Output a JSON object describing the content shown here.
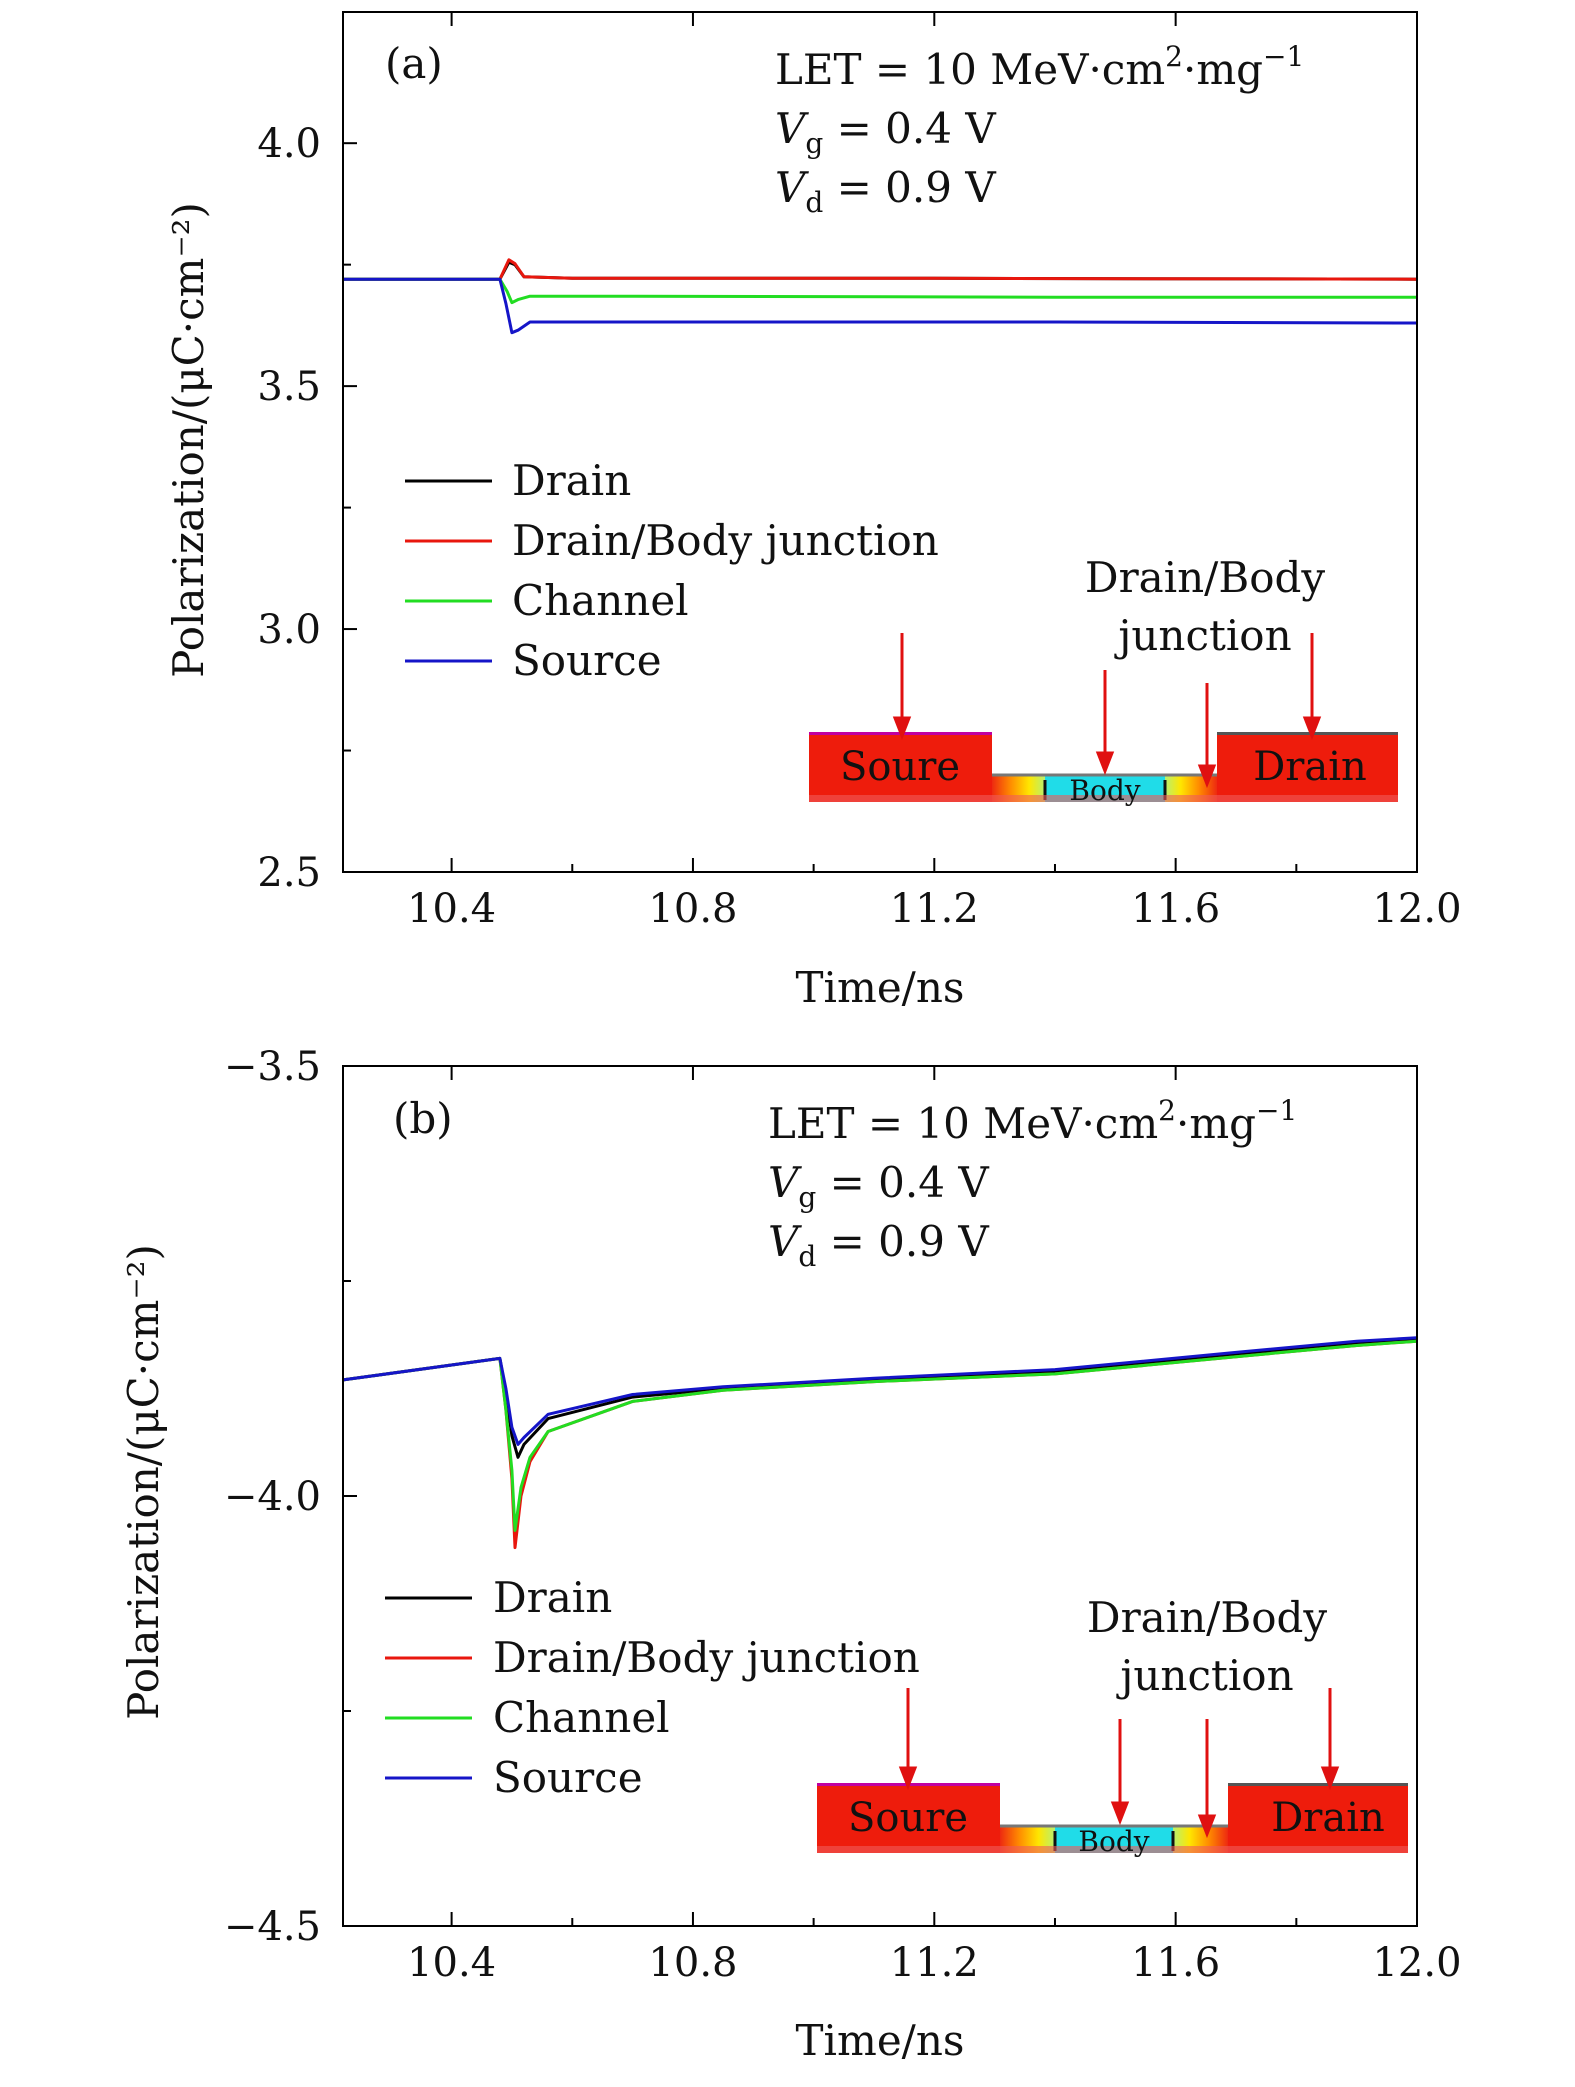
{
  "chart_data": [
    {
      "type": "line",
      "panel_label": "(a)",
      "xlabel": "Time/ns",
      "ylabel": "Polarization/(μC·cm⁻²)",
      "xlim": [
        10.22,
        12.0
      ],
      "ylim": [
        2.5,
        4.27
      ],
      "x_ticks": [
        10.4,
        10.8,
        11.2,
        11.6,
        12.0
      ],
      "x_tick_labels": [
        "10.4",
        "10.8",
        "11.2",
        "11.6",
        "12.0"
      ],
      "y_ticks": [
        2.5,
        3.0,
        3.5,
        4.0
      ],
      "y_tick_labels": [
        "2.5",
        "3.0",
        "3.5",
        "4.0"
      ],
      "annotation": {
        "let_prefix": "LET = 10 MeV·cm",
        "let_exp1": "2",
        "let_mid": "·mg",
        "let_exp2": "−1",
        "vg_sym": "V",
        "vg_sub": "g",
        "vg_val": " = 0.4 V",
        "vd_sym": "V",
        "vd_sub": "d",
        "vd_val": " = 0.9 V"
      },
      "legend": {
        "position": "left",
        "entries": [
          "Drain",
          "Drain/Body junction",
          "Channel",
          "Source"
        ]
      },
      "inset": {
        "source_label": "Soure",
        "drain_label": "Drain",
        "body_label": "Body",
        "junction_label_1": "Drain/Body",
        "junction_label_2": "junction"
      },
      "series": [
        {
          "name": "Drain",
          "color": "#000000",
          "points": [
            [
              10.22,
              3.72
            ],
            [
              10.48,
              3.72
            ],
            [
              10.495,
              3.755
            ],
            [
              10.505,
              3.75
            ],
            [
              10.52,
              3.725
            ],
            [
              10.6,
              3.722
            ],
            [
              11.2,
              3.722
            ],
            [
              12.0,
              3.72
            ]
          ]
        },
        {
          "name": "Drain/Body junction",
          "color": "#e8170e",
          "points": [
            [
              10.22,
              3.72
            ],
            [
              10.48,
              3.72
            ],
            [
              10.495,
              3.76
            ],
            [
              10.505,
              3.752
            ],
            [
              10.52,
              3.725
            ],
            [
              10.6,
              3.722
            ],
            [
              11.2,
              3.722
            ],
            [
              12.0,
              3.72
            ]
          ]
        },
        {
          "name": "Channel",
          "color": "#22dd22",
          "points": [
            [
              10.22,
              3.72
            ],
            [
              10.48,
              3.72
            ],
            [
              10.492,
              3.695
            ],
            [
              10.5,
              3.672
            ],
            [
              10.51,
              3.678
            ],
            [
              10.53,
              3.685
            ],
            [
              10.7,
              3.685
            ],
            [
              11.4,
              3.683
            ],
            [
              12.0,
              3.683
            ]
          ]
        },
        {
          "name": "Source",
          "color": "#1515c8",
          "points": [
            [
              10.22,
              3.72
            ],
            [
              10.48,
              3.72
            ],
            [
              10.49,
              3.67
            ],
            [
              10.5,
              3.61
            ],
            [
              10.51,
              3.615
            ],
            [
              10.53,
              3.632
            ],
            [
              10.7,
              3.632
            ],
            [
              11.4,
              3.632
            ],
            [
              12.0,
              3.63
            ]
          ]
        }
      ]
    },
    {
      "type": "line",
      "panel_label": "(b)",
      "xlabel": "Time/ns",
      "ylabel": "Polarization/(μC·cm⁻²)",
      "xlim": [
        10.22,
        12.0
      ],
      "ylim": [
        -4.5,
        -3.5
      ],
      "x_ticks": [
        10.4,
        10.8,
        11.2,
        11.6,
        12.0
      ],
      "x_tick_labels": [
        "10.4",
        "10.8",
        "11.2",
        "11.6",
        "12.0"
      ],
      "y_ticks": [
        -4.5,
        -4.0,
        -3.5
      ],
      "y_tick_labels": [
        "−4.5",
        "−4.0",
        "−3.5"
      ],
      "annotation": {
        "let_prefix": "LET = 10 MeV·cm",
        "let_exp1": "2",
        "let_mid": "·mg",
        "let_exp2": "−1",
        "vg_sym": "V",
        "vg_sub": "g",
        "vg_val": " = 0.4 V",
        "vd_sym": "V",
        "vd_sub": "d",
        "vd_val": " = 0.9 V"
      },
      "legend": {
        "position": "left",
        "entries": [
          "Drain",
          "Drain/Body junction",
          "Channel",
          "Source"
        ]
      },
      "inset": {
        "source_label": "Soure",
        "drain_label": "Drain",
        "body_label": "Body",
        "junction_label_1": "Drain/Body",
        "junction_label_2": "junction"
      },
      "series": [
        {
          "name": "Drain",
          "color": "#000000",
          "points": [
            [
              10.22,
              -3.865
            ],
            [
              10.48,
              -3.84
            ],
            [
              10.49,
              -3.88
            ],
            [
              10.5,
              -3.93
            ],
            [
              10.51,
              -3.955
            ],
            [
              10.52,
              -3.94
            ],
            [
              10.56,
              -3.91
            ],
            [
              10.7,
              -3.885
            ],
            [
              10.85,
              -3.875
            ],
            [
              11.1,
              -3.865
            ],
            [
              11.4,
              -3.855
            ],
            [
              11.7,
              -3.835
            ],
            [
              11.9,
              -3.822
            ],
            [
              12.0,
              -3.818
            ]
          ]
        },
        {
          "name": "Drain/Body junction",
          "color": "#e8170e",
          "points": [
            [
              10.22,
              -3.865
            ],
            [
              10.48,
              -3.84
            ],
            [
              10.49,
              -3.9
            ],
            [
              10.5,
              -3.98
            ],
            [
              10.505,
              -4.06
            ],
            [
              10.515,
              -4.0
            ],
            [
              10.53,
              -3.96
            ],
            [
              10.56,
              -3.925
            ],
            [
              10.7,
              -3.89
            ],
            [
              10.85,
              -3.877
            ],
            [
              11.1,
              -3.867
            ],
            [
              11.4,
              -3.858
            ],
            [
              11.7,
              -3.838
            ],
            [
              11.9,
              -3.825
            ],
            [
              12.0,
              -3.82
            ]
          ]
        },
        {
          "name": "Channel",
          "color": "#22dd22",
          "points": [
            [
              10.22,
              -3.865
            ],
            [
              10.48,
              -3.84
            ],
            [
              10.49,
              -3.9
            ],
            [
              10.5,
              -3.97
            ],
            [
              10.505,
              -4.04
            ],
            [
              10.515,
              -3.99
            ],
            [
              10.53,
              -3.955
            ],
            [
              10.56,
              -3.925
            ],
            [
              10.7,
              -3.89
            ],
            [
              10.85,
              -3.877
            ],
            [
              11.1,
              -3.867
            ],
            [
              11.4,
              -3.858
            ],
            [
              11.7,
              -3.838
            ],
            [
              11.9,
              -3.825
            ],
            [
              12.0,
              -3.82
            ]
          ]
        },
        {
          "name": "Source",
          "color": "#1515c8",
          "points": [
            [
              10.22,
              -3.865
            ],
            [
              10.48,
              -3.84
            ],
            [
              10.49,
              -3.875
            ],
            [
              10.5,
              -3.92
            ],
            [
              10.51,
              -3.94
            ],
            [
              10.52,
              -3.932
            ],
            [
              10.56,
              -3.905
            ],
            [
              10.7,
              -3.882
            ],
            [
              10.85,
              -3.873
            ],
            [
              11.1,
              -3.863
            ],
            [
              11.4,
              -3.853
            ],
            [
              11.7,
              -3.833
            ],
            [
              11.9,
              -3.82
            ],
            [
              12.0,
              -3.816
            ]
          ]
        }
      ]
    }
  ]
}
